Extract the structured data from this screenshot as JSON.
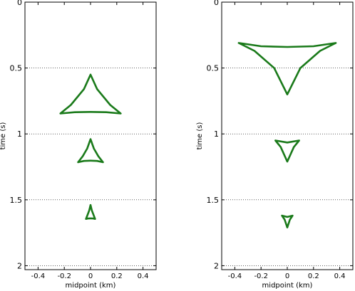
{
  "chart_data": [
    {
      "type": "line",
      "xlabel": "midpoint (km)",
      "ylabel": "time (s)",
      "xlim": [
        -0.5,
        0.5
      ],
      "ylim": [
        2.03,
        0
      ],
      "x_ticks": [
        "-0.4",
        "-0.2",
        "0",
        "0.2",
        "0.4"
      ],
      "y_ticks": [
        "0",
        "0.5",
        "1",
        "1.5",
        "2"
      ],
      "grid": "y-dotted",
      "color": "#1a7a1a",
      "series": [
        {
          "x": [
            0.0,
            0.05,
            0.15,
            0.23,
            0.12,
            0.0,
            -0.12,
            -0.23,
            -0.15,
            -0.05,
            0.0
          ],
          "y": [
            0.55,
            0.66,
            0.78,
            0.845,
            0.835,
            0.833,
            0.835,
            0.845,
            0.78,
            0.66,
            0.55
          ]
        },
        {
          "x": [
            0.0,
            0.025,
            0.06,
            0.095,
            0.05,
            0.0,
            -0.05,
            -0.095,
            -0.06,
            -0.025,
            0.0
          ],
          "y": [
            1.04,
            1.11,
            1.17,
            1.215,
            1.205,
            1.203,
            1.205,
            1.215,
            1.17,
            1.11,
            1.04
          ]
        },
        {
          "x": [
            0.0,
            0.01,
            0.025,
            0.035,
            0.02,
            0.0,
            -0.02,
            -0.035,
            -0.025,
            -0.01,
            0.0
          ],
          "y": [
            1.54,
            1.58,
            1.62,
            1.645,
            1.642,
            1.641,
            1.642,
            1.645,
            1.62,
            1.58,
            1.54
          ]
        }
      ]
    },
    {
      "type": "line",
      "xlabel": "midpoint (km)",
      "ylabel": "time (s)",
      "xlim": [
        -0.5,
        0.5
      ],
      "ylim": [
        2.03,
        0
      ],
      "x_ticks": [
        "-0.4",
        "-0.2",
        "0",
        "0.2",
        "0.4"
      ],
      "y_ticks": [
        "0",
        "0.5",
        "1",
        "1.5",
        "2"
      ],
      "grid": "y-dotted",
      "color": "#1a7a1a",
      "series": [
        {
          "x": [
            -0.37,
            -0.2,
            0.0,
            0.2,
            0.37,
            0.25,
            0.1,
            0.0,
            -0.1,
            -0.25,
            -0.37
          ],
          "y": [
            0.31,
            0.335,
            0.34,
            0.335,
            0.31,
            0.37,
            0.5,
            0.7,
            0.5,
            0.37,
            0.31
          ]
        },
        {
          "x": [
            -0.09,
            0.0,
            0.09,
            0.05,
            0.0,
            -0.05,
            -0.09
          ],
          "y": [
            1.05,
            1.065,
            1.05,
            1.1,
            1.21,
            1.1,
            1.05
          ]
        },
        {
          "x": [
            -0.04,
            0.0,
            0.04,
            0.02,
            0.0,
            -0.02,
            -0.04
          ],
          "y": [
            1.62,
            1.63,
            1.62,
            1.65,
            1.71,
            1.65,
            1.62
          ]
        }
      ]
    }
  ]
}
